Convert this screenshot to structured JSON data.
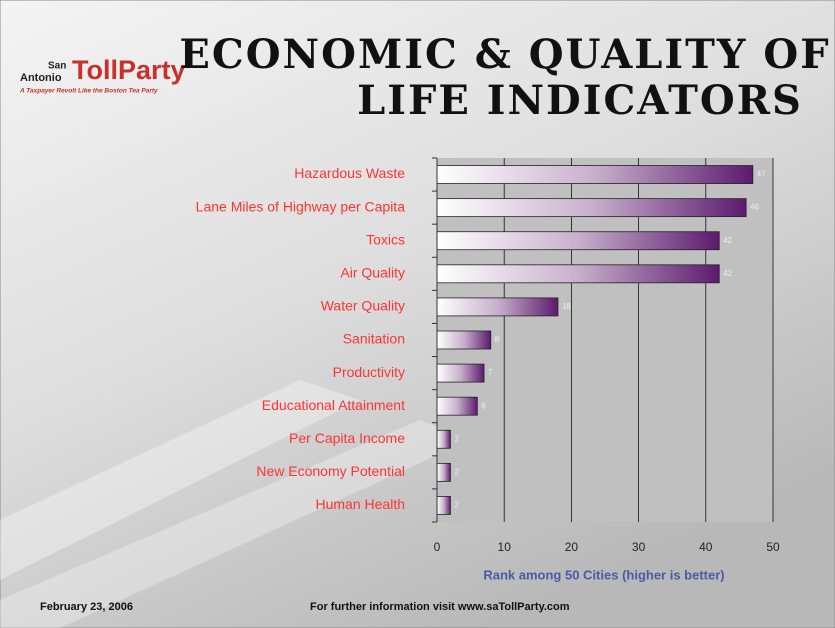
{
  "logo": {
    "top": "San",
    "left": "Antonio",
    "main": "TollParty",
    "tagline": "A Taxpayer Revolt Like the Boston Tea Party"
  },
  "chart_data": {
    "type": "barh",
    "title_lines": [
      "ECONOMIC & QUALITY OF",
      "LIFE INDICATORS"
    ],
    "categories": [
      "Hazardous Waste",
      "Lane Miles of Highway per Capita",
      "Toxics",
      "Air Quality",
      "Water Quality",
      "Sanitation",
      "Productivity",
      "Educational Attainment",
      "Per Capita Income",
      "New Economy Potential",
      "Human Health"
    ],
    "values": [
      47,
      46,
      42,
      42,
      18,
      8,
      7,
      6,
      2,
      2,
      2
    ],
    "color": "#5c1a6e",
    "xlim": [
      0,
      50
    ],
    "xticks": [
      0,
      10,
      20,
      30,
      40,
      50
    ],
    "xlabel": "Rank among 50 Cities (higher is better)",
    "grid": true
  },
  "footer": {
    "date": "February 23, 2006",
    "info": "For further information visit www.saTollParty.com"
  }
}
